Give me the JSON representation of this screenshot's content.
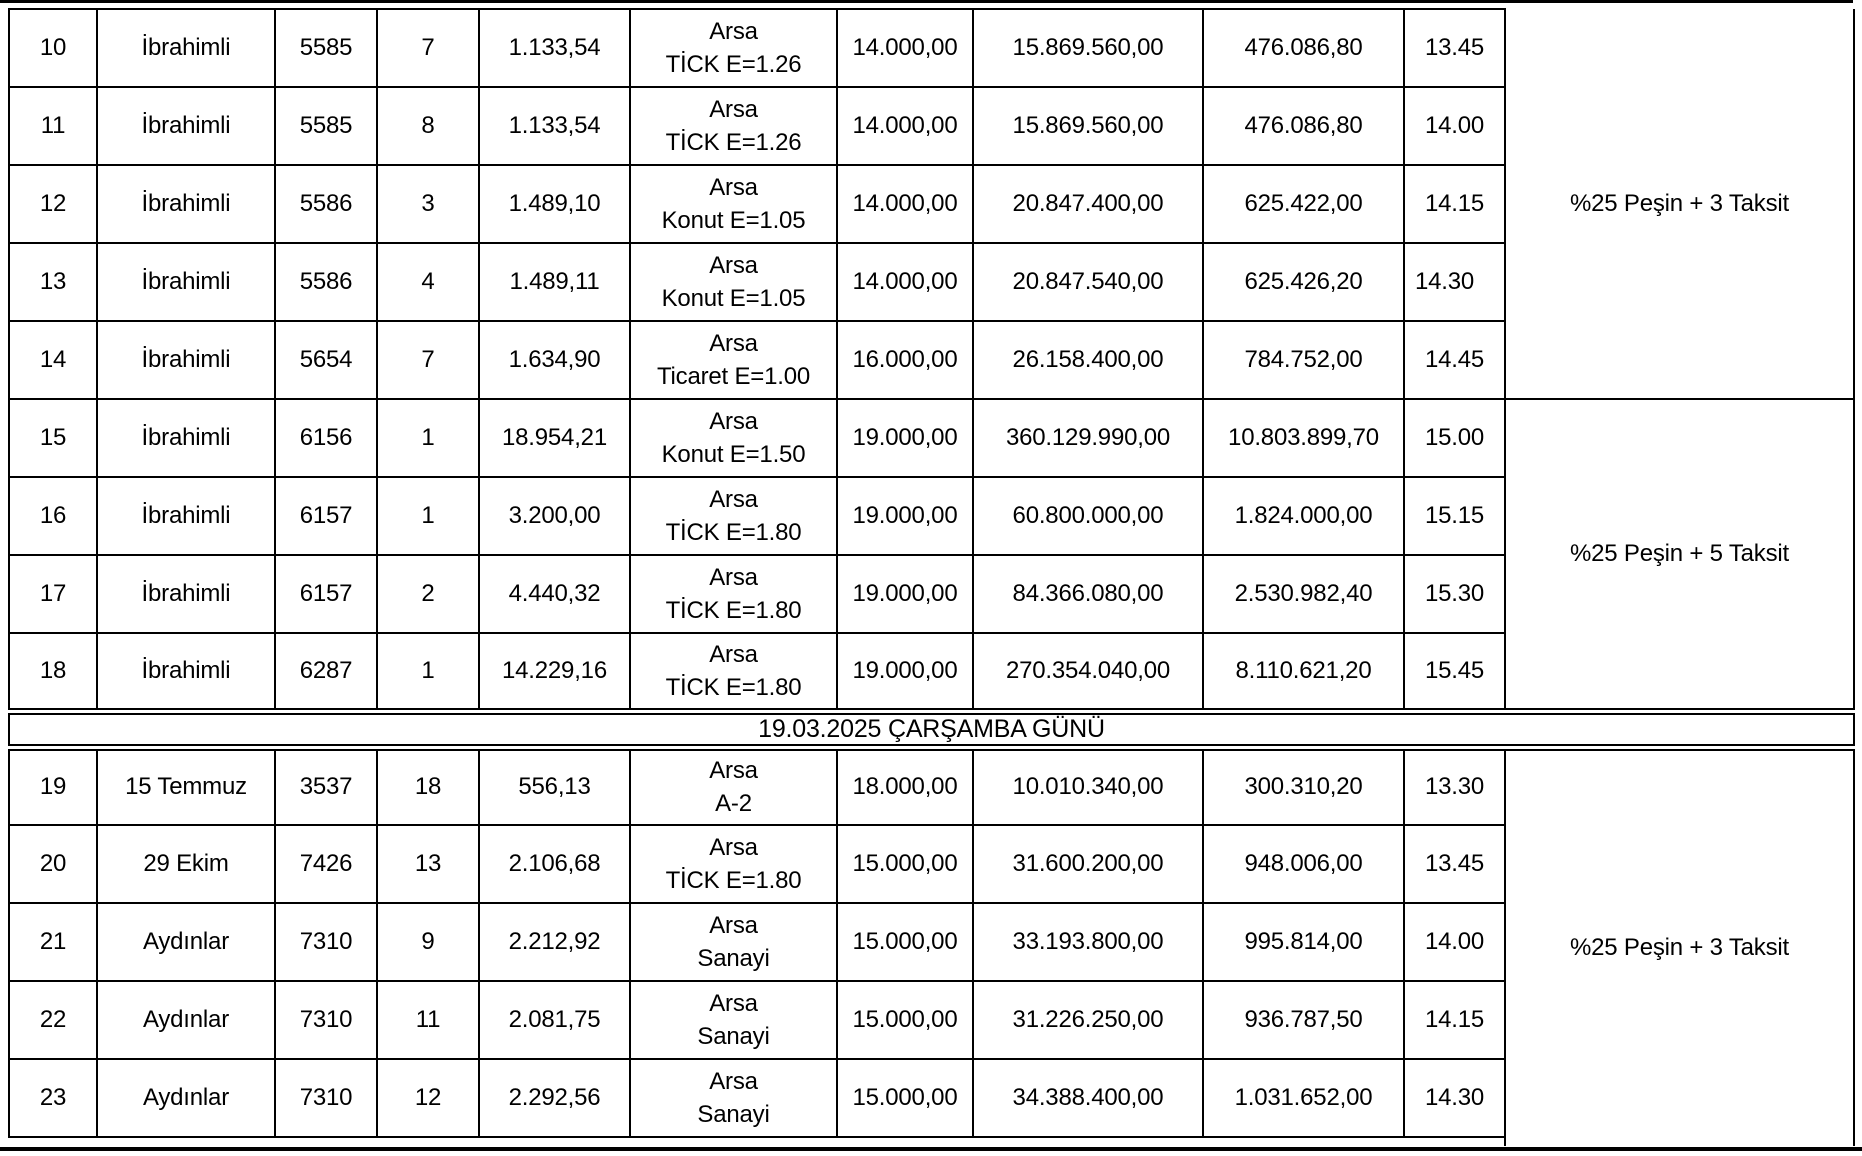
{
  "colors": {
    "border": "#000000",
    "background": "#ffffff",
    "text": "#000000"
  },
  "table": {
    "separator_text": "19.03.2025 ÇARŞAMBA GÜNÜ",
    "separator_before_row_index": 9,
    "rows": [
      {
        "no": "10",
        "mahalle": "İbrahimli",
        "ada": "5585",
        "parsel": "7",
        "alan": "1.133,54",
        "nitelik1": "Arsa",
        "nitelik2": "TİCK E=1.26",
        "birim": "14.000,00",
        "toplam": "15.869.560,00",
        "teminat": "476.086,80",
        "saat": "13.45"
      },
      {
        "no": "11",
        "mahalle": "İbrahimli",
        "ada": "5585",
        "parsel": "8",
        "alan": "1.133,54",
        "nitelik1": "Arsa",
        "nitelik2": "TİCK E=1.26",
        "birim": "14.000,00",
        "toplam": "15.869.560,00",
        "teminat": "476.086,80",
        "saat": "14.00"
      },
      {
        "no": "12",
        "mahalle": "İbrahimli",
        "ada": "5586",
        "parsel": "3",
        "alan": "1.489,10",
        "nitelik1": "Arsa",
        "nitelik2": "Konut E=1.05",
        "birim": "14.000,00",
        "toplam": "20.847.400,00",
        "teminat": "625.422,00",
        "saat": "14.15"
      },
      {
        "no": "13",
        "mahalle": "İbrahimli",
        "ada": "5586",
        "parsel": "4",
        "alan": "1.489,11",
        "nitelik1": "Arsa",
        "nitelik2": "Konut E=1.05",
        "birim": "14.000,00",
        "toplam": "20.847.540,00",
        "teminat": "625.426,20",
        "saat": "14.30",
        "saat_left": true
      },
      {
        "no": "14",
        "mahalle": "İbrahimli",
        "ada": "5654",
        "parsel": "7",
        "alan": "1.634,90",
        "nitelik1": "Arsa",
        "nitelik2": "Ticaret E=1.00",
        "birim": "16.000,00",
        "toplam": "26.158.400,00",
        "teminat": "784.752,00",
        "saat": "14.45"
      },
      {
        "no": "15",
        "mahalle": "İbrahimli",
        "ada": "6156",
        "parsel": "1",
        "alan": "18.954,21",
        "nitelik1": "Arsa",
        "nitelik2": "Konut E=1.50",
        "birim": "19.000,00",
        "toplam": "360.129.990,00",
        "teminat": "10.803.899,70",
        "saat": "15.00"
      },
      {
        "no": "16",
        "mahalle": "İbrahimli",
        "ada": "6157",
        "parsel": "1",
        "alan": "3.200,00",
        "nitelik1": "Arsa",
        "nitelik2": "TİCK E=1.80",
        "birim": "19.000,00",
        "toplam": "60.800.000,00",
        "teminat": "1.824.000,00",
        "saat": "15.15"
      },
      {
        "no": "17",
        "mahalle": "İbrahimli",
        "ada": "6157",
        "parsel": "2",
        "alan": "4.440,32",
        "nitelik1": "Arsa",
        "nitelik2": "TİCK E=1.80",
        "birim": "19.000,00",
        "toplam": "84.366.080,00",
        "teminat": "2.530.982,40",
        "saat": "15.30"
      },
      {
        "no": "18",
        "mahalle": "İbrahimli",
        "ada": "6287",
        "parsel": "1",
        "alan": "14.229,16",
        "nitelik1": "Arsa",
        "nitelik2": "TİCK E=1.80",
        "birim": "19.000,00",
        "toplam": "270.354.040,00",
        "teminat": "8.110.621,20",
        "saat": "15.45"
      },
      {
        "no": "19",
        "mahalle": "15 Temmuz",
        "ada": "3537",
        "parsel": "18",
        "alan": "556,13",
        "nitelik1": "Arsa",
        "nitelik2": "A-2",
        "birim": "18.000,00",
        "toplam": "10.010.340,00",
        "teminat": "300.310,20",
        "saat": "13.30"
      },
      {
        "no": "20",
        "mahalle": "29 Ekim",
        "ada": "7426",
        "parsel": "13",
        "alan": "2.106,68",
        "nitelik1": "Arsa",
        "nitelik2": "TİCK E=1.80",
        "birim": "15.000,00",
        "toplam": "31.600.200,00",
        "teminat": "948.006,00",
        "saat": "13.45"
      },
      {
        "no": "21",
        "mahalle": "Aydınlar",
        "ada": "7310",
        "parsel": "9",
        "alan": "2.212,92",
        "nitelik1": "Arsa",
        "nitelik2": "Sanayi",
        "birim": "15.000,00",
        "toplam": "33.193.800,00",
        "teminat": "995.814,00",
        "saat": "14.00"
      },
      {
        "no": "22",
        "mahalle": "Aydınlar",
        "ada": "7310",
        "parsel": "11",
        "alan": "2.081,75",
        "nitelik1": "Arsa",
        "nitelik2": "Sanayi",
        "birim": "15.000,00",
        "toplam": "31.226.250,00",
        "teminat": "936.787,50",
        "saat": "14.15"
      },
      {
        "no": "23",
        "mahalle": "Aydınlar",
        "ada": "7310",
        "parsel": "12",
        "alan": "2.292,56",
        "nitelik1": "Arsa",
        "nitelik2": "Sanayi",
        "birim": "15.000,00",
        "toplam": "34.388.400,00",
        "teminat": "1.031.652,00",
        "saat": "14.30"
      }
    ],
    "groups": [
      {
        "start": 0,
        "rows": 5,
        "label": "%25 Peşin + 3 Taksit",
        "open_top": true
      },
      {
        "start": 5,
        "rows": 4,
        "label": "%25 Peşin + 5 Taksit"
      },
      {
        "start": 9,
        "rows": 5,
        "label": "%25 Peşin + 3 Taksit",
        "extends_to_bottom": true
      }
    ]
  }
}
